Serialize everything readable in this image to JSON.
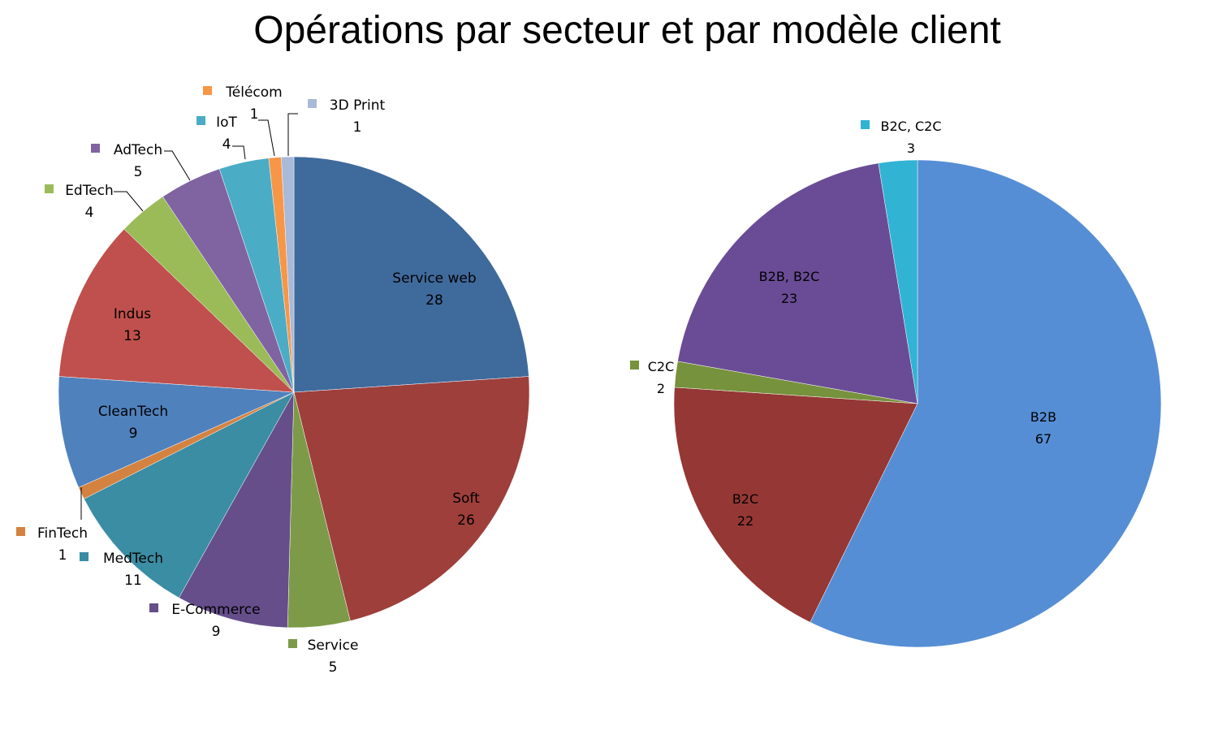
{
  "title": "Opérations par secteur et par modèle client",
  "chart_data": [
    {
      "type": "pie",
      "categories": [
        "Service web",
        "Soft",
        "Service",
        "E-Commerce",
        "MedTech",
        "FinTech",
        "CleanTech",
        "Indus",
        "EdTech",
        "AdTech",
        "IoT",
        "Télécom",
        "3D Print"
      ],
      "values": [
        28,
        26,
        5,
        9,
        11,
        1,
        9,
        13,
        4,
        5,
        4,
        1,
        1
      ],
      "colors": [
        "#3F6A9C",
        "#9E3F3C",
        "#7D9A48",
        "#654E8A",
        "#3A8DA3",
        "#D4823F",
        "#4F81BD",
        "#C0504D",
        "#9BBB59",
        "#8064A2",
        "#4BACC6",
        "#F79646",
        "#A9B9D8"
      ],
      "legend": "labels next to slices",
      "start_angle_deg": 0,
      "direction": "clockwise"
    },
    {
      "type": "pie",
      "categories": [
        "B2B",
        "B2C",
        "C2C",
        "B2B, B2C",
        "B2C, C2C"
      ],
      "values": [
        67,
        22,
        2,
        23,
        3
      ],
      "colors": [
        "#558ED5",
        "#953735",
        "#76923C",
        "#6A4C96",
        "#31B3D4"
      ],
      "legend": "labels next to slices",
      "start_angle_deg": 0,
      "direction": "clockwise"
    }
  ]
}
